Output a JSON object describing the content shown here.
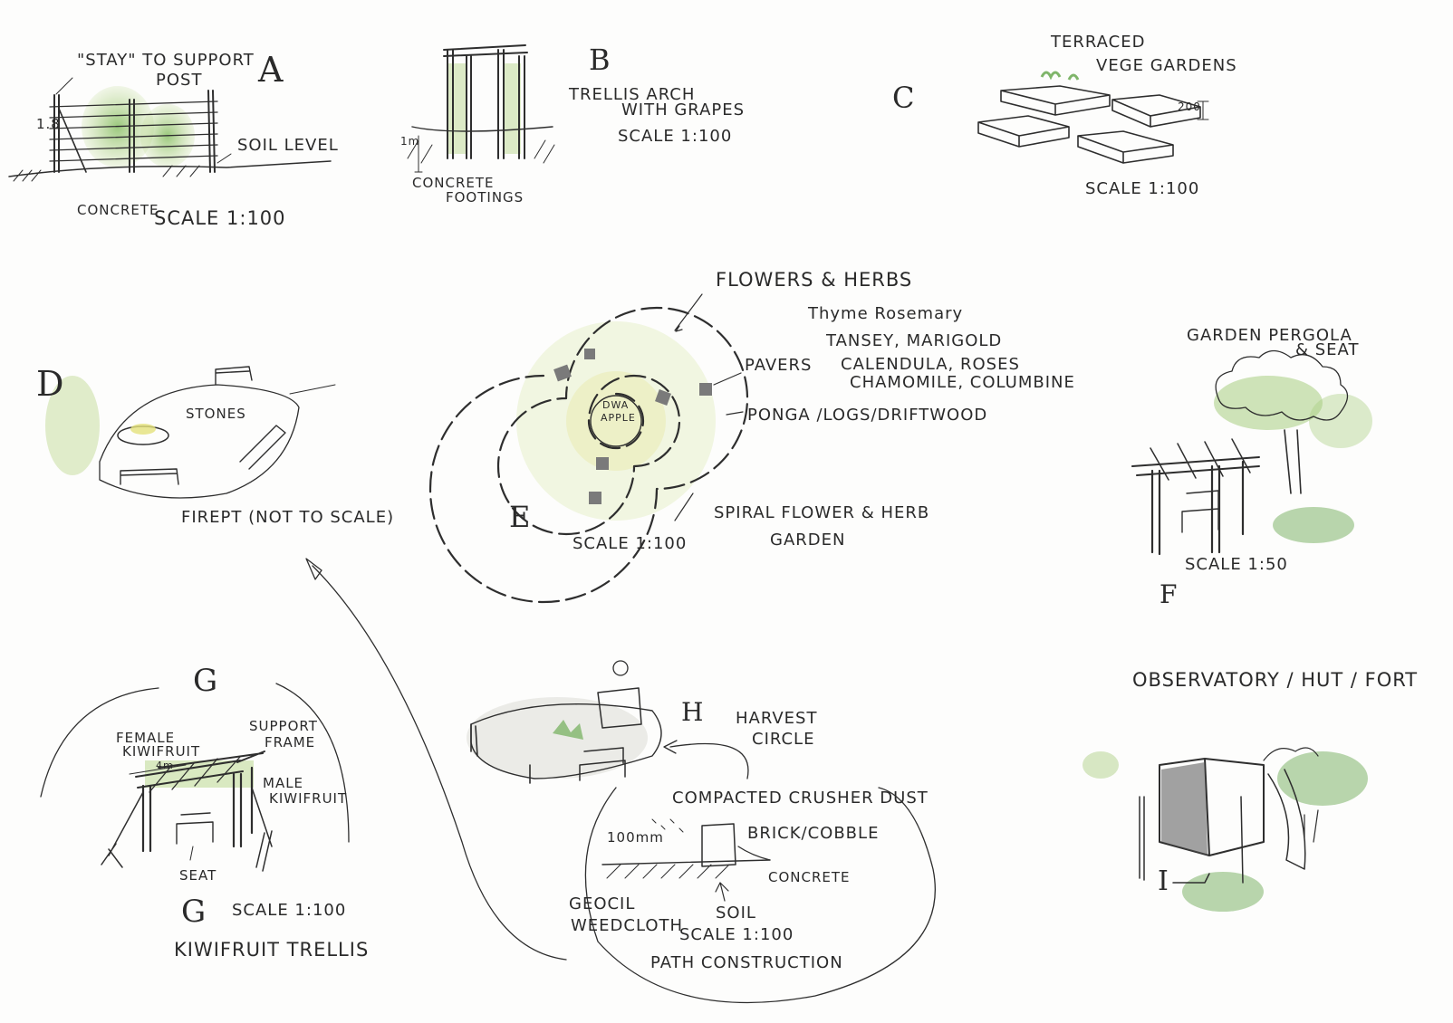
{
  "colors": {
    "ink": "#2e2e2e",
    "leaf": "#7fb56a",
    "leaf_light": "#bcd88f",
    "yellow": "#e4e17a",
    "paper": "#fdfdfc"
  },
  "sketch_a": {
    "letter": "A",
    "stay_label": "\"STAY\" TO SUPPORT POST",
    "stay_line1": "\"STAY\" TO SUPPORT",
    "stay_line2": "POST",
    "height_mark": "1.8",
    "soil_label": "SOIL LEVEL",
    "concrete_label": "CONCRETE",
    "scale": "SCALE 1:100"
  },
  "sketch_b": {
    "letter": "B",
    "title_line1": "TRELLIS ARCH",
    "title_line2": "WITH GRAPES",
    "scale": "SCALE 1:100",
    "height_mark": "1m",
    "footings_line1": "CONCRETE",
    "footings_line2": "FOOTINGS"
  },
  "sketch_c": {
    "letter": "C",
    "title_line1": "TERRACED",
    "title_line2": "VEGE GARDENS",
    "height_mark": "200",
    "scale": "SCALE 1:100"
  },
  "sketch_d": {
    "letter": "D",
    "stones_label": "STONES",
    "caption": "FIREPT (NOT TO SCALE)"
  },
  "sketch_e": {
    "letter": "E",
    "flowers_label": "FLOWERS & HERBS",
    "plants_line1": "Thyme Rosemary",
    "plants_line2": "TANSEY, MARIGOLD",
    "plants_line3": "CALENDULA, ROSES",
    "plants_line4": "CHAMOMILE, COLUMBINE",
    "pavers_label": "PAVERS",
    "ponga_label": "PONGA /LOGS/DRIFTWOOD",
    "center_line1": "DWA",
    "center_line2": "APPLE",
    "scale": "SCALE 1:100",
    "caption_line1": "SPIRAL FLOWER & HERB",
    "caption_line2": "GARDEN"
  },
  "sketch_f": {
    "letter": "F",
    "title_line1": "GARDEN PERGOLA",
    "title_line2": "& SEAT",
    "scale": "SCALE 1:50"
  },
  "sketch_g": {
    "letter": "G",
    "female_line1": "FEMALE",
    "female_line2": "KIWIFRUIT",
    "width_mark": "4m",
    "support_line1": "SUPPORT",
    "support_line2": "FRAME",
    "male_line1": "MALE",
    "male_line2": "KIWIFRUIT",
    "seat_label": "SEAT",
    "scale": "SCALE 1:100",
    "caption": "KIWIFRUIT TRELLIS"
  },
  "sketch_h": {
    "letter": "H",
    "title_line1": "HARVEST",
    "title_line2": "CIRCLE",
    "crusher_label": "COMPACTED CRUSHER DUST",
    "brick_label": "BRICK/COBBLE",
    "depth_mark": "100mm",
    "concrete_label": "CONCRETE",
    "soil_label": "SOIL",
    "geocil_line1": "GEOCIL",
    "geocil_line2": "WEEDCLOTH",
    "scale": "SCALE 1:100",
    "caption": "PATH CONSTRUCTION"
  },
  "sketch_i": {
    "letter": "I",
    "title": "OBSERVATORY / HUT / FORT"
  }
}
